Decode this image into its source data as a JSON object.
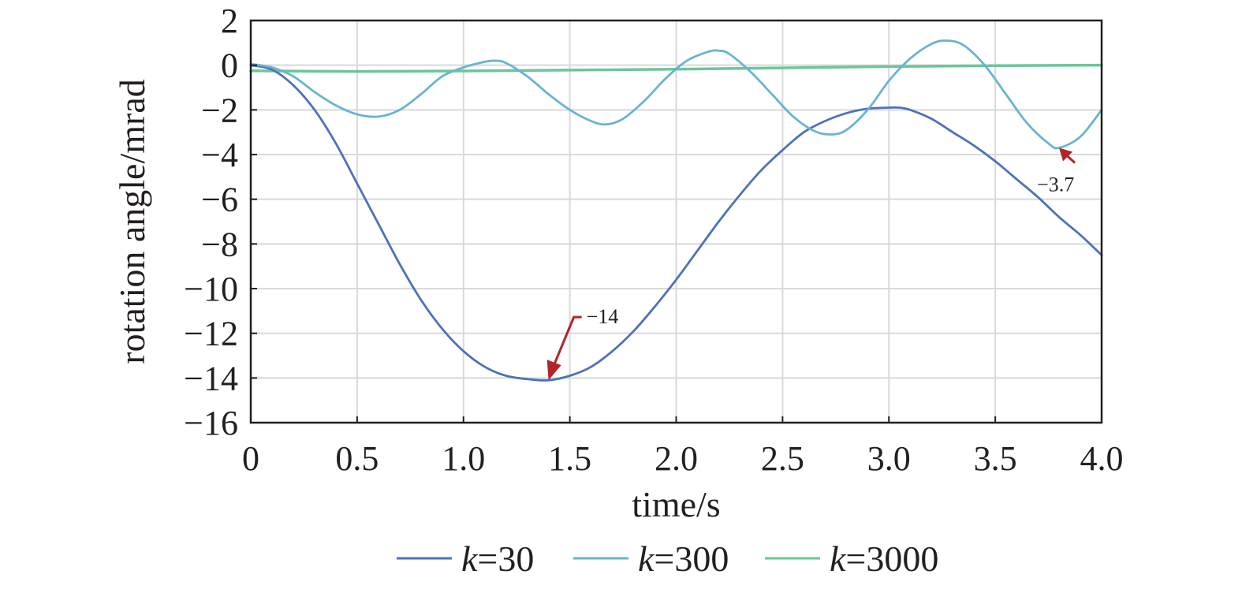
{
  "chart_data": {
    "type": "line",
    "title": "",
    "xlabel": "time/s",
    "ylabel": "rotation angle/mrad",
    "xlim": [
      0,
      4.0
    ],
    "ylim": [
      -16,
      2
    ],
    "grid": true,
    "legend_position": "bottom",
    "x_ticks": [
      "0",
      "0.5",
      "1.0",
      "1.5",
      "2.0",
      "2.5",
      "3.0",
      "3.5",
      "4.0"
    ],
    "y_ticks": [
      "2",
      "0",
      "−2",
      "−4",
      "−6",
      "−8",
      "−10",
      "−12",
      "−14",
      "−16"
    ],
    "series": [
      {
        "name": "k=30",
        "legend_italic": "k",
        "legend_rest": "=30",
        "color": "#4d72b8",
        "x": [
          0,
          0.1,
          0.2,
          0.3,
          0.4,
          0.5,
          0.6,
          0.7,
          0.8,
          0.9,
          1.0,
          1.1,
          1.2,
          1.3,
          1.4,
          1.5,
          1.6,
          1.7,
          1.8,
          1.9,
          2.0,
          2.1,
          2.2,
          2.3,
          2.4,
          2.5,
          2.6,
          2.7,
          2.8,
          2.9,
          3.0,
          3.05,
          3.1,
          3.2,
          3.3,
          3.4,
          3.5,
          3.6,
          3.7,
          3.8,
          3.9,
          4.0
        ],
        "y": [
          0,
          -0.2,
          -0.9,
          -2.0,
          -3.5,
          -5.3,
          -7.1,
          -8.9,
          -10.5,
          -11.8,
          -12.8,
          -13.5,
          -13.9,
          -14.05,
          -14.1,
          -13.9,
          -13.5,
          -12.8,
          -11.9,
          -10.8,
          -9.6,
          -8.3,
          -7.0,
          -5.8,
          -4.7,
          -3.8,
          -3.0,
          -2.5,
          -2.15,
          -1.95,
          -1.9,
          -1.9,
          -2.0,
          -2.4,
          -3.0,
          -3.6,
          -4.3,
          -5.1,
          -5.9,
          -6.8,
          -7.6,
          -8.5
        ]
      },
      {
        "name": "k=300",
        "legend_italic": "k",
        "legend_rest": "=300",
        "color": "#6ab4d0",
        "x": [
          0,
          0.1,
          0.2,
          0.3,
          0.4,
          0.5,
          0.6,
          0.7,
          0.8,
          0.9,
          1.0,
          1.1,
          1.15,
          1.2,
          1.3,
          1.4,
          1.5,
          1.6,
          1.67,
          1.75,
          1.85,
          1.95,
          2.05,
          2.15,
          2.2,
          2.25,
          2.35,
          2.45,
          2.55,
          2.65,
          2.73,
          2.8,
          2.9,
          3.0,
          3.1,
          3.2,
          3.27,
          3.35,
          3.45,
          3.55,
          3.65,
          3.75,
          3.8,
          3.9,
          4.0
        ],
        "y": [
          0.05,
          -0.1,
          -0.5,
          -1.2,
          -1.8,
          -2.2,
          -2.3,
          -2.0,
          -1.3,
          -0.5,
          -0.1,
          0.15,
          0.2,
          0.1,
          -0.5,
          -1.3,
          -2.0,
          -2.5,
          -2.65,
          -2.4,
          -1.6,
          -0.6,
          0.2,
          0.6,
          0.65,
          0.5,
          -0.3,
          -1.3,
          -2.3,
          -2.95,
          -3.1,
          -2.9,
          -2.0,
          -0.7,
          0.3,
          0.95,
          1.1,
          0.9,
          0.0,
          -1.3,
          -2.6,
          -3.5,
          -3.7,
          -3.2,
          -2.0
        ]
      },
      {
        "name": "k=3000",
        "legend_italic": "k",
        "legend_rest": "=3000",
        "color": "#6cc69a",
        "x": [
          0,
          0.5,
          1.0,
          1.5,
          2.0,
          2.5,
          3.0,
          3.5,
          4.0
        ],
        "y": [
          -0.25,
          -0.28,
          -0.26,
          -0.22,
          -0.18,
          -0.12,
          -0.06,
          -0.02,
          0.0
        ]
      }
    ],
    "annotations": [
      {
        "text": "−14",
        "x": 1.4,
        "y": -14.1,
        "color": "#b3242a"
      },
      {
        "text": "−3.7",
        "x": 3.8,
        "y": -3.7,
        "color": "#b3242a"
      }
    ]
  }
}
